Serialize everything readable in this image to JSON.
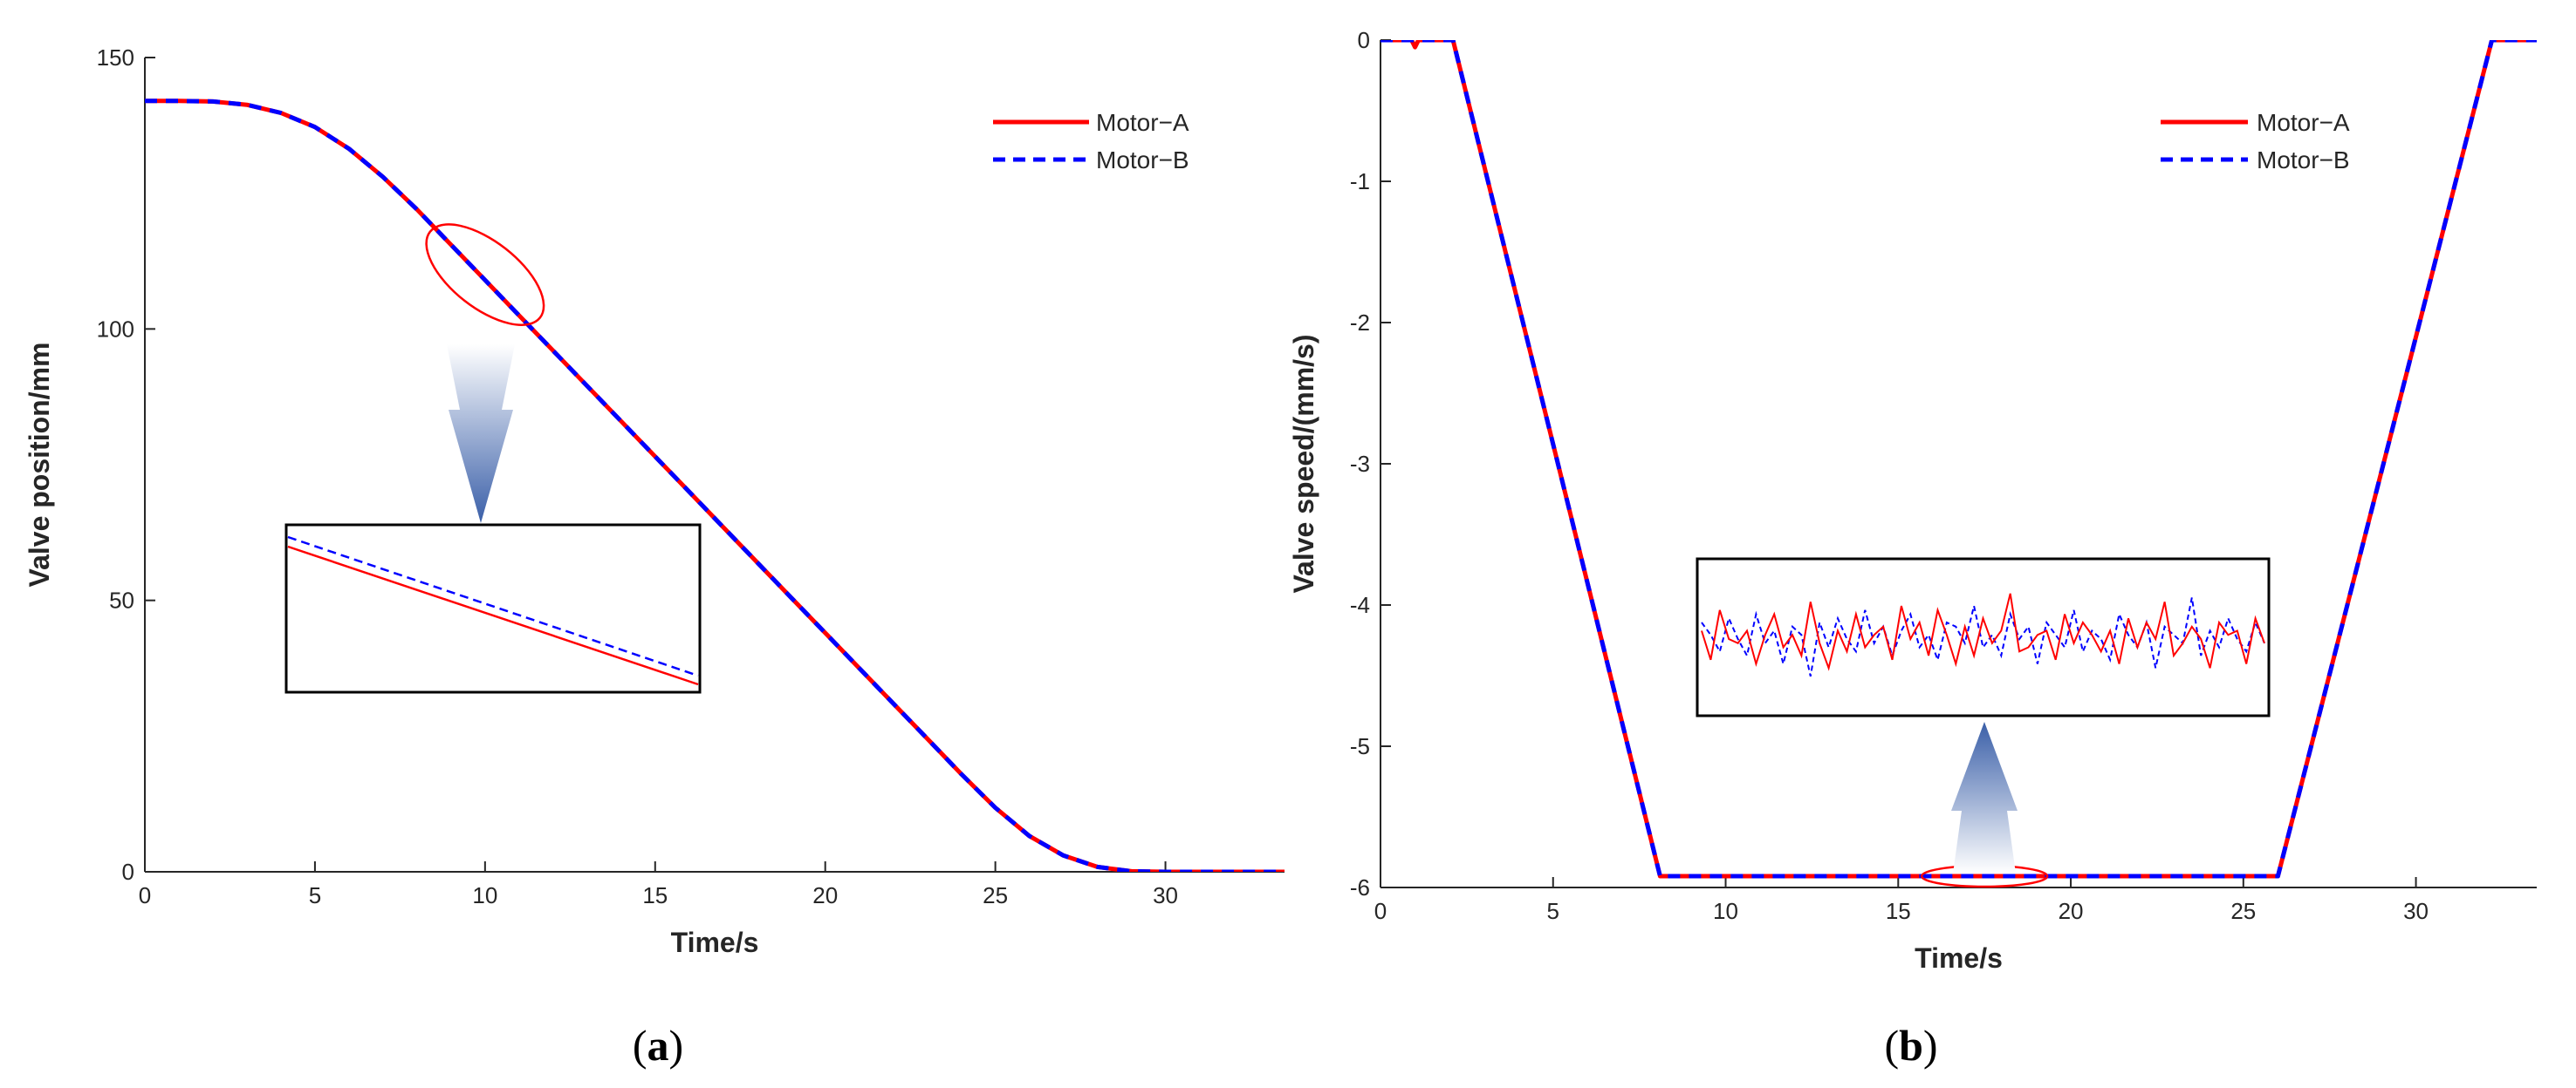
{
  "colors": {
    "motor_a": "#ff0000",
    "motor_b": "#0000ff",
    "axis": "#262626",
    "arrow_dark": "#3a5fa8",
    "arrow_light": "#ffffff"
  },
  "chart_data": [
    {
      "type": "line",
      "panel": "(a)",
      "caption_open": "(",
      "caption_letter": "a",
      "caption_close": ")",
      "title": "",
      "xlabel": "Time/s",
      "ylabel": "Valve position/mm",
      "xlim": [
        0,
        33.5
      ],
      "ylim": [
        0,
        150
      ],
      "xticks": [
        0,
        5,
        10,
        15,
        20,
        25,
        30
      ],
      "xtick_labels": [
        "0",
        "5",
        "10",
        "15",
        "20",
        "25",
        "30"
      ],
      "yticks": [
        0,
        50,
        100,
        150
      ],
      "ytick_labels": [
        "0",
        "50",
        "100",
        "150"
      ],
      "grid": false,
      "legend_position": "top-right",
      "series": [
        {
          "name": "Motor−A",
          "style": "solid",
          "x": [
            0,
            1,
            2,
            3,
            4,
            5,
            6,
            7,
            8,
            9,
            10,
            11,
            12,
            13,
            14,
            15,
            16,
            17,
            18,
            19,
            20,
            21,
            22,
            23,
            24,
            25,
            26,
            27,
            28,
            29,
            30,
            31,
            32,
            33.5
          ],
          "y": [
            142,
            142,
            141.9,
            141.3,
            139.8,
            137.2,
            133.2,
            128,
            122,
            115.5,
            109,
            102.5,
            96,
            89.5,
            83,
            76.5,
            70,
            63.5,
            57,
            50.5,
            44,
            37.5,
            31,
            24.5,
            18,
            11.8,
            6.6,
            3,
            0.9,
            0.1,
            0,
            0,
            0,
            0
          ]
        },
        {
          "name": "Motor−B",
          "style": "dashed",
          "x": [
            0,
            1,
            2,
            3,
            4,
            5,
            6,
            7,
            8,
            9,
            10,
            11,
            12,
            13,
            14,
            15,
            16,
            17,
            18,
            19,
            20,
            21,
            22,
            23,
            24,
            25,
            26,
            27,
            28,
            29,
            30,
            31,
            32,
            33.5
          ],
          "y": [
            142,
            142,
            141.9,
            141.3,
            139.8,
            137.2,
            133.2,
            128,
            122,
            115.5,
            109,
            102.5,
            96,
            89.5,
            83,
            76.5,
            70,
            63.5,
            57,
            50.5,
            44,
            37.5,
            31,
            24.5,
            18,
            11.8,
            6.6,
            3,
            0.9,
            0.1,
            0,
            0,
            0,
            0
          ]
        }
      ],
      "annotations": {
        "ellipse_center": [
          10,
          110
        ],
        "zoom_inset": "Motor−B line slightly above Motor−A line"
      }
    },
    {
      "type": "line",
      "panel": "(b)",
      "caption_open": "(",
      "caption_letter": "b",
      "caption_close": ")",
      "title": "",
      "xlabel": "Time/s",
      "ylabel": "Valve speed/(mm/s)",
      "xlim": [
        0,
        33.5
      ],
      "ylim": [
        -6,
        0
      ],
      "xticks": [
        0,
        5,
        10,
        15,
        20,
        25,
        30
      ],
      "xtick_labels": [
        "0",
        "5",
        "10",
        "15",
        "20",
        "25",
        "30"
      ],
      "yticks": [
        0,
        -1,
        -2,
        -3,
        -4,
        -5,
        -6
      ],
      "ytick_labels": [
        "0",
        "-1",
        "-2",
        "-3",
        "-4",
        "-5",
        "-6"
      ],
      "grid": false,
      "legend_position": "top-right",
      "series": [
        {
          "name": "Motor−A",
          "style": "solid",
          "x": [
            0,
            0.9,
            1,
            1.1,
            2.1,
            8.1,
            26,
            32.2,
            33.5
          ],
          "y": [
            0,
            0,
            -0.05,
            0,
            0,
            -5.92,
            -5.92,
            0,
            0
          ]
        },
        {
          "name": "Motor−B",
          "style": "dashed",
          "x": [
            0,
            2.1,
            8.1,
            26,
            32.2,
            33.5
          ],
          "y": [
            0,
            0,
            -5.92,
            -5.92,
            0,
            0
          ]
        }
      ],
      "annotations": {
        "ellipse_center": [
          17.5,
          -5.92
        ],
        "zoom_inset": "magnified noise of constant-speed segment",
        "inset_noise_a": [
          0.1,
          -0.25,
          0.35,
          0.0,
          -0.05,
          0.1,
          -0.3,
          0.05,
          0.3,
          -0.1,
          0.05,
          -0.2,
          0.45,
          -0.05,
          -0.35,
          0.1,
          -0.15,
          0.3,
          -0.1,
          0.05,
          0.15,
          -0.25,
          0.4,
          0.0,
          0.2,
          -0.2,
          0.35,
          0.05,
          -0.3,
          0.15,
          -0.2,
          0.25,
          -0.05,
          0.1,
          0.55,
          -0.15,
          -0.1,
          0.05,
          0.1,
          -0.25,
          0.3,
          -0.05,
          0.2,
          0.05,
          -0.15,
          0.1,
          -0.3,
          0.25,
          -0.1,
          0.2,
          0.0,
          0.45,
          -0.2,
          -0.05,
          0.15,
          0.0,
          -0.35,
          0.2,
          0.05,
          0.1,
          -0.3,
          0.25,
          -0.05
        ],
        "inset_noise_b": [
          0.2,
          0.05,
          -0.15,
          0.25,
          0.0,
          -0.2,
          0.3,
          -0.05,
          0.1,
          -0.3,
          0.15,
          0.05,
          -0.45,
          0.2,
          -0.1,
          0.25,
          0.0,
          -0.15,
          0.35,
          -0.05,
          0.15,
          -0.2,
          0.1,
          0.3,
          -0.1,
          0.05,
          -0.25,
          0.2,
          0.15,
          -0.05,
          0.4,
          -0.1,
          0.05,
          -0.2,
          0.3,
          0.0,
          0.15,
          -0.3,
          0.2,
          0.05,
          -0.1,
          0.35,
          -0.15,
          0.1,
          0.0,
          -0.25,
          0.3,
          0.05,
          -0.1,
          0.2,
          -0.35,
          0.15,
          0.05,
          -0.05,
          0.5,
          -0.2,
          0.1,
          -0.1,
          0.25,
          0.0,
          -0.15,
          0.2,
          -0.05
        ]
      }
    }
  ]
}
